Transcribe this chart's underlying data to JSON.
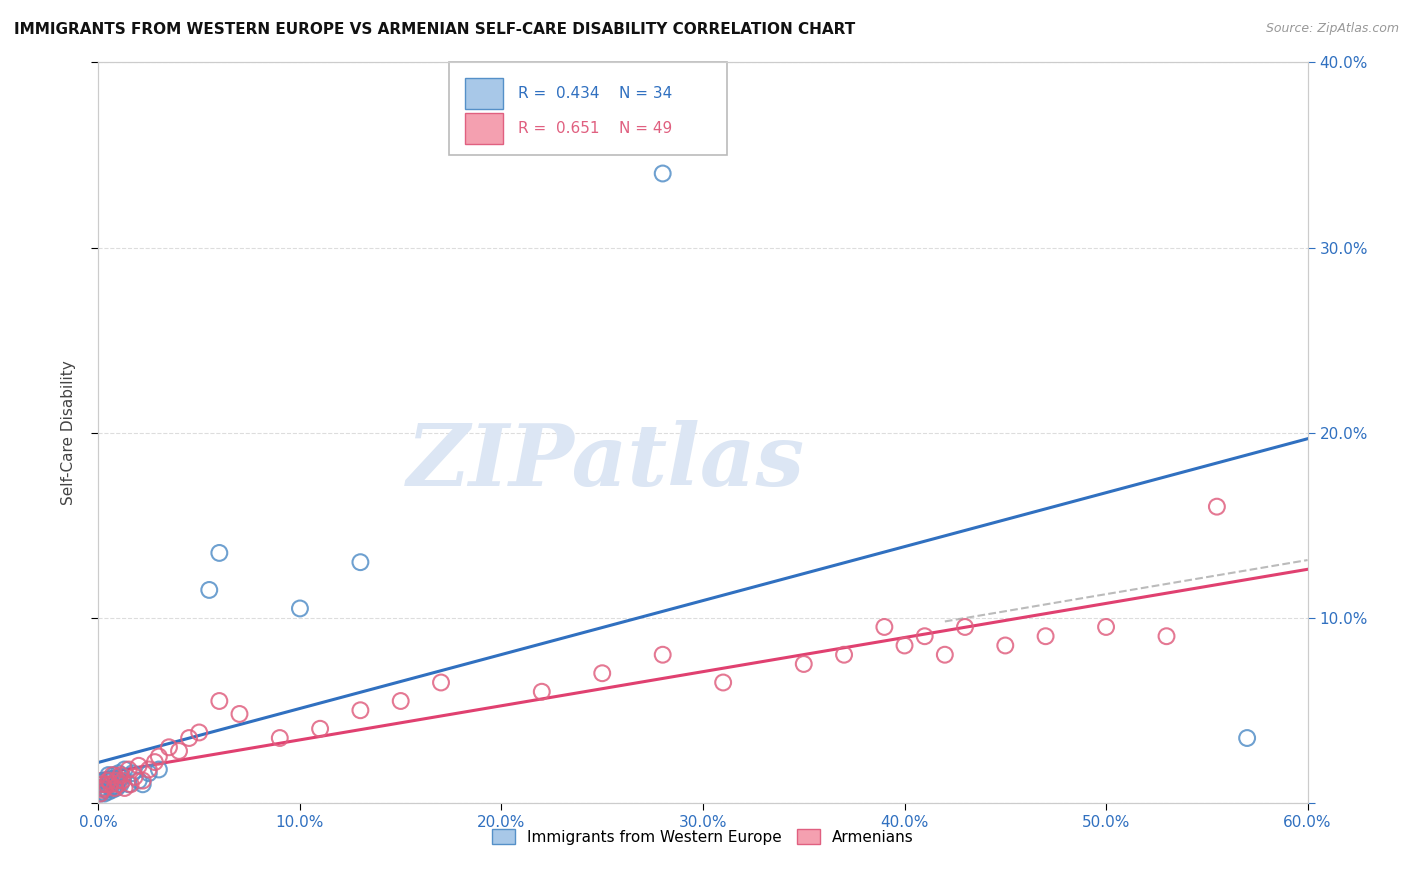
{
  "title": "IMMIGRANTS FROM WESTERN EUROPE VS ARMENIAN SELF-CARE DISABILITY CORRELATION CHART",
  "source": "Source: ZipAtlas.com",
  "ylabel": "Self-Care Disability",
  "xlim": [
    0.0,
    0.6
  ],
  "ylim": [
    0.0,
    0.4
  ],
  "blue_label": "Immigrants from Western Europe",
  "pink_label": "Armenians",
  "blue_R": "0.434",
  "blue_N": "34",
  "pink_R": "0.651",
  "pink_N": "49",
  "blue_color": "#a8c8e8",
  "pink_color": "#f4a0b0",
  "blue_edge_color": "#5590c8",
  "pink_edge_color": "#e06080",
  "blue_line_color": "#3070c0",
  "pink_line_color": "#e04070",
  "blue_points_x": [
    0.001,
    0.001,
    0.002,
    0.002,
    0.003,
    0.003,
    0.004,
    0.004,
    0.005,
    0.005,
    0.006,
    0.006,
    0.007,
    0.007,
    0.008,
    0.008,
    0.009,
    0.01,
    0.01,
    0.011,
    0.012,
    0.013,
    0.015,
    0.017,
    0.02,
    0.022,
    0.025,
    0.03,
    0.055,
    0.06,
    0.1,
    0.13,
    0.28,
    0.57
  ],
  "blue_points_y": [
    0.005,
    0.008,
    0.006,
    0.01,
    0.005,
    0.012,
    0.007,
    0.01,
    0.006,
    0.015,
    0.008,
    0.012,
    0.007,
    0.013,
    0.009,
    0.015,
    0.008,
    0.012,
    0.016,
    0.01,
    0.014,
    0.018,
    0.01,
    0.016,
    0.012,
    0.01,
    0.016,
    0.018,
    0.115,
    0.135,
    0.105,
    0.13,
    0.34,
    0.035
  ],
  "pink_points_x": [
    0.001,
    0.002,
    0.002,
    0.003,
    0.004,
    0.005,
    0.006,
    0.007,
    0.008,
    0.009,
    0.01,
    0.011,
    0.012,
    0.013,
    0.015,
    0.016,
    0.018,
    0.02,
    0.022,
    0.025,
    0.028,
    0.03,
    0.035,
    0.04,
    0.045,
    0.05,
    0.06,
    0.07,
    0.09,
    0.11,
    0.13,
    0.15,
    0.17,
    0.22,
    0.25,
    0.28,
    0.31,
    0.35,
    0.37,
    0.39,
    0.4,
    0.41,
    0.42,
    0.43,
    0.45,
    0.47,
    0.5,
    0.53,
    0.555
  ],
  "pink_points_y": [
    0.005,
    0.007,
    0.01,
    0.008,
    0.01,
    0.012,
    0.01,
    0.015,
    0.008,
    0.012,
    0.01,
    0.015,
    0.012,
    0.008,
    0.018,
    0.01,
    0.014,
    0.02,
    0.012,
    0.018,
    0.022,
    0.025,
    0.03,
    0.028,
    0.035,
    0.038,
    0.055,
    0.048,
    0.035,
    0.04,
    0.05,
    0.055,
    0.065,
    0.06,
    0.07,
    0.08,
    0.065,
    0.075,
    0.08,
    0.095,
    0.085,
    0.09,
    0.08,
    0.095,
    0.085,
    0.09,
    0.095,
    0.09,
    0.16
  ],
  "background_color": "#ffffff",
  "watermark": "ZIPatlas",
  "watermark_color": "#dce6f4",
  "grid_color": "#dddddd",
  "title_fontsize": 11,
  "tick_fontsize": 11,
  "ylabel_fontsize": 11
}
